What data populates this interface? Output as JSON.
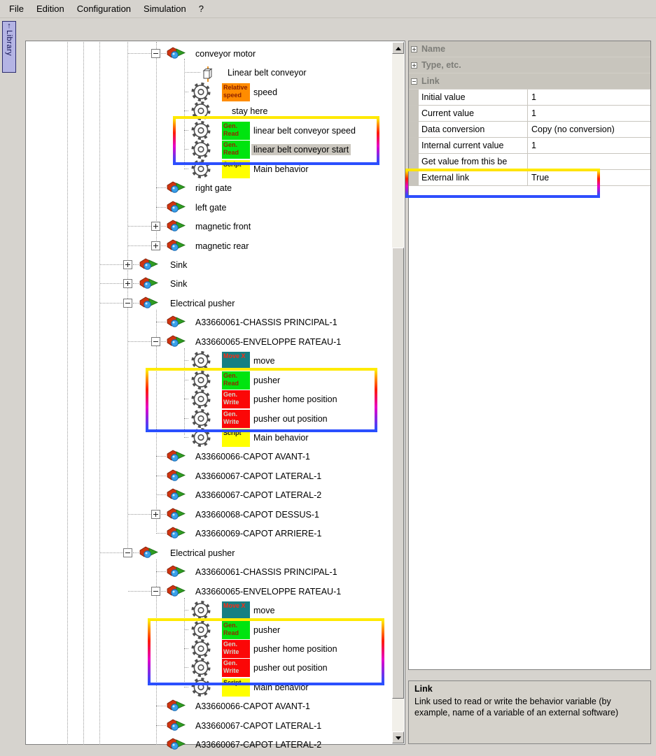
{
  "menu": {
    "items": [
      {
        "id": "file",
        "label": "File"
      },
      {
        "id": "edition",
        "label": "Edition"
      },
      {
        "id": "configuration",
        "label": "Configuration"
      },
      {
        "id": "simulation",
        "label": "Simulation"
      },
      {
        "id": "help",
        "label": "?"
      }
    ]
  },
  "library_tab": {
    "label": "Library",
    "arrow": "↑"
  },
  "badges": {
    "relative_speed": {
      "lines": [
        "Relative",
        "speed"
      ],
      "bg": "#ff8c00",
      "fg": "#8a1f00"
    },
    "gen_read": {
      "lines": [
        "Gen.",
        "Read"
      ],
      "bg": "#00e40f",
      "fg": "#952700"
    },
    "gen_write": {
      "lines": [
        "Gen.",
        "Write"
      ],
      "bg": "#fb0707",
      "fg": "#d3d6c8"
    },
    "script": {
      "lines": [
        "Script"
      ],
      "bg": "#ffff00",
      "fg": "#1e1e1e"
    },
    "move_x": {
      "lines": [
        "Move X"
      ],
      "bg": "#157f82",
      "fg": "#ff2a12"
    }
  },
  "tree": {
    "items": [
      {
        "label": "conveyor motor",
        "level": "gate",
        "exp": "minus",
        "icon": "component"
      },
      {
        "label": "Linear belt conveyor",
        "level": "gear",
        "icon": "box"
      },
      {
        "label": "speed",
        "level": "gear",
        "icon": "gear",
        "badge": "relative_speed"
      },
      {
        "label": "stay here",
        "level": "gear",
        "icon": "gear"
      },
      {
        "label": "linear belt conveyor speed",
        "level": "gear",
        "icon": "gear",
        "badge": "gen_read",
        "highlight_group": 1
      },
      {
        "label": "linear belt conveyor start",
        "level": "gear",
        "icon": "gear",
        "badge": "gen_read",
        "selected": true,
        "highlight_group": 1
      },
      {
        "label": "Main behavior",
        "level": "gear",
        "icon": "gear",
        "badge": "script"
      },
      {
        "label": "right gate",
        "level": "gate",
        "icon": "component"
      },
      {
        "label": "left gate",
        "level": "gate",
        "icon": "component"
      },
      {
        "label": "magnetic front",
        "level": "gate",
        "exp": "plus",
        "icon": "component"
      },
      {
        "label": "magnetic rear",
        "level": "gate",
        "exp": "plus",
        "icon": "component"
      },
      {
        "label": "Sink",
        "level": "sink",
        "exp": "plus",
        "icon": "component"
      },
      {
        "label": "Sink",
        "level": "sink",
        "exp": "plus",
        "icon": "component"
      },
      {
        "label": "Electrical pusher",
        "level": "sink",
        "exp": "minus",
        "icon": "component"
      },
      {
        "label": "A33660061-CHASSIS PRINCIPAL-1",
        "level": "gate",
        "icon": "component"
      },
      {
        "label": "A33660065-ENVELOPPE RATEAU-1",
        "level": "gate",
        "exp": "minus",
        "icon": "component"
      },
      {
        "label": "move",
        "level": "gear",
        "icon": "gear",
        "badge": "move_x"
      },
      {
        "label": "pusher",
        "level": "gear",
        "icon": "gear",
        "badge": "gen_read",
        "highlight_group": 2
      },
      {
        "label": "pusher home position",
        "level": "gear",
        "icon": "gear",
        "badge": "gen_write",
        "highlight_group": 2
      },
      {
        "label": "pusher out position",
        "level": "gear",
        "icon": "gear",
        "badge": "gen_write",
        "highlight_group": 2
      },
      {
        "label": "Main behavior",
        "level": "gear",
        "icon": "gear",
        "badge": "script"
      },
      {
        "label": "A33660066-CAPOT AVANT-1",
        "level": "gate",
        "icon": "component"
      },
      {
        "label": "A33660067-CAPOT LATERAL-1",
        "level": "gate",
        "icon": "component"
      },
      {
        "label": "A33660067-CAPOT LATERAL-2",
        "level": "gate",
        "icon": "component"
      },
      {
        "label": "A33660068-CAPOT DESSUS-1",
        "level": "gate",
        "exp": "plus",
        "icon": "component"
      },
      {
        "label": "A33660069-CAPOT ARRIERE-1",
        "level": "gate",
        "icon": "component"
      },
      {
        "label": "Electrical pusher",
        "level": "sink",
        "exp": "minus",
        "icon": "component"
      },
      {
        "label": "A33660061-CHASSIS PRINCIPAL-1",
        "level": "gate",
        "icon": "component"
      },
      {
        "label": "A33660065-ENVELOPPE RATEAU-1",
        "level": "gate",
        "exp": "minus",
        "icon": "component"
      },
      {
        "label": "move",
        "level": "gear",
        "icon": "gear",
        "badge": "move_x"
      },
      {
        "label": "pusher",
        "level": "gear",
        "icon": "gear",
        "badge": "gen_read",
        "highlight_group": 3
      },
      {
        "label": "pusher home position",
        "level": "gear",
        "icon": "gear",
        "badge": "gen_write",
        "highlight_group": 3
      },
      {
        "label": "pusher out position",
        "level": "gear",
        "icon": "gear",
        "badge": "gen_write",
        "highlight_group": 3
      },
      {
        "label": "Main behavior",
        "level": "gear",
        "icon": "gear",
        "badge": "script"
      },
      {
        "label": "A33660066-CAPOT AVANT-1",
        "level": "gate",
        "icon": "component"
      },
      {
        "label": "A33660067-CAPOT LATERAL-1",
        "level": "gate",
        "icon": "component"
      },
      {
        "label": "A33660067-CAPOT LATERAL-2",
        "level": "gate",
        "icon": "component"
      }
    ]
  },
  "property_grid": {
    "categories": [
      {
        "id": "name",
        "label": "Name",
        "expanded": false
      },
      {
        "id": "type",
        "label": "Type, etc.",
        "expanded": false
      },
      {
        "id": "link",
        "label": "Link",
        "expanded": true
      }
    ],
    "rows": [
      {
        "name": "Initial value",
        "value": "1"
      },
      {
        "name": "Current value",
        "value": "1"
      },
      {
        "name": "Data conversion",
        "value": "Copy (no conversion)"
      },
      {
        "name": "Internal current value",
        "value": "1"
      },
      {
        "name": "Get value from this be",
        "value": ""
      },
      {
        "name": "External link",
        "value": "True",
        "highlighted": true
      }
    ]
  },
  "description": {
    "title": "Link",
    "body": "Link used to read or write the behavior variable (by example, name of a variable of an external software)"
  },
  "colors": {
    "window_bg": "#d6d3ce",
    "selection_bg": "#cbc7bf",
    "library_tab_bg": "#b4b4e4",
    "category_bg": "#c8c5bd",
    "category_fg": "#7d7d78",
    "highlight_gradient": [
      "#ffee00",
      "#ff9000",
      "#ff1e00",
      "#e800c8",
      "#2850ff"
    ]
  }
}
